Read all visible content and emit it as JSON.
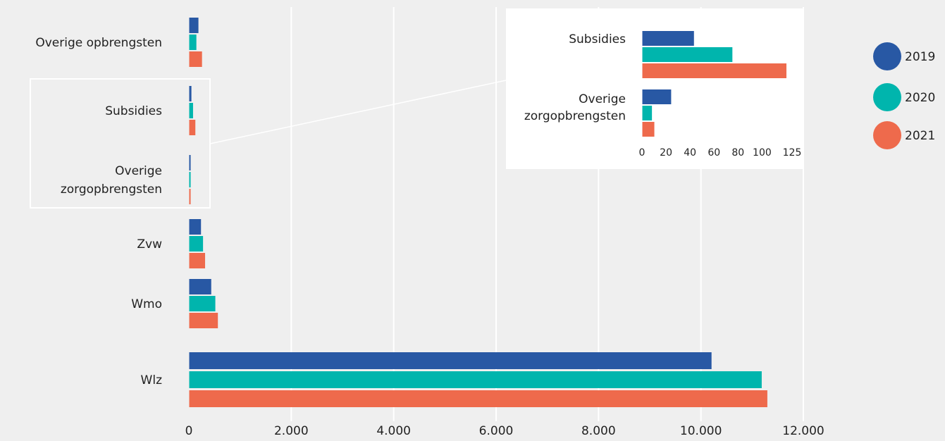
{
  "colors": {
    "2019": "#2858a4",
    "2020": "#00b5ad",
    "2021": "#ee6a4c"
  },
  "legend": [
    {
      "label": "2019",
      "color": "#2858a4"
    },
    {
      "label": "2020",
      "color": "#00b5ad"
    },
    {
      "label": "2021",
      "color": "#ee6a4c"
    }
  ],
  "chart_data": [
    {
      "type": "bar",
      "orientation": "horizontal",
      "title": "",
      "xlabel": "",
      "ylabel": "",
      "categories": [
        [
          "Overige opbrengsten"
        ],
        [
          "Subsidies"
        ],
        [
          "Overige",
          "zorgopbrengsten"
        ],
        [
          "Zvw"
        ],
        [
          "Wmo"
        ],
        [
          "Wlz"
        ]
      ],
      "series": [
        {
          "name": "2019",
          "values": [
            180,
            43,
            24,
            230,
            430,
            10200
          ]
        },
        {
          "name": "2020",
          "values": [
            140,
            75,
            8,
            270,
            510,
            11180
          ]
        },
        {
          "name": "2021",
          "values": [
            250,
            120,
            10,
            310,
            560,
            11290
          ]
        }
      ],
      "xlim": [
        0,
        12000
      ],
      "xticks": [
        0,
        2000,
        4000,
        6000,
        8000,
        10000,
        12000
      ],
      "xtick_labels": [
        "0",
        "2.000",
        "4.000",
        "6.000",
        "8.000",
        "10.000",
        "12.000"
      ],
      "grid": true,
      "legend_position": "right"
    },
    {
      "type": "bar",
      "orientation": "horizontal",
      "inset": true,
      "title": "",
      "categories": [
        [
          "Subsidies"
        ],
        [
          "Overige",
          "zorgopbrengsten"
        ]
      ],
      "series": [
        {
          "name": "2019",
          "values": [
            43,
            24
          ]
        },
        {
          "name": "2020",
          "values": [
            75,
            8
          ]
        },
        {
          "name": "2021",
          "values": [
            120,
            10
          ]
        }
      ],
      "xlim": [
        0,
        125
      ],
      "xticks": [
        0,
        20,
        40,
        60,
        80,
        100,
        125
      ],
      "xtick_labels": [
        "0",
        "20",
        "40",
        "60",
        "80",
        "100",
        "125"
      ],
      "grid": false
    }
  ]
}
